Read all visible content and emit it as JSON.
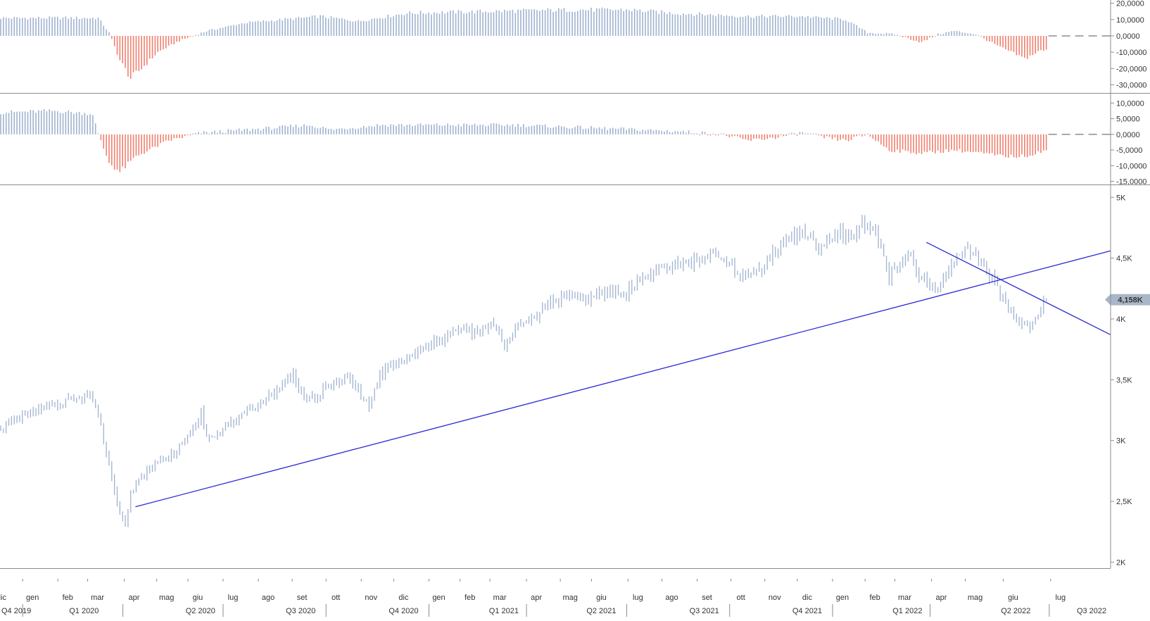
{
  "colors": {
    "bar_positive": "#9fb2cf",
    "bar_negative": "#f07f6e",
    "price": "#9fb2cf",
    "trendline": "#2b2bd6",
    "axis": "#8c8c8c",
    "badge_bg": "#a9b6c8"
  },
  "chart_data": [
    {
      "type": "bar",
      "panel": "indicator-1",
      "ylim": [
        -35,
        22
      ],
      "ticks": [
        "20,0000",
        "10,0000",
        "0,0000",
        "-10,0000",
        "-20,0000",
        "-30,0000"
      ],
      "tick_values": [
        20,
        10,
        0,
        -10,
        -20,
        -30
      ],
      "zero_line": "dashed",
      "series_anchors": [
        [
          0,
          11
        ],
        [
          36,
          11
        ],
        [
          40,
          2
        ],
        [
          44,
          -15
        ],
        [
          48,
          -26
        ],
        [
          52,
          -20
        ],
        [
          58,
          -10
        ],
        [
          66,
          -3
        ],
        [
          76,
          3
        ],
        [
          90,
          8
        ],
        [
          118,
          12
        ],
        [
          132,
          9
        ],
        [
          150,
          14
        ],
        [
          180,
          15
        ],
        [
          210,
          16
        ],
        [
          232,
          16
        ],
        [
          248,
          14
        ],
        [
          276,
          12
        ],
        [
          296,
          12
        ],
        [
          312,
          10
        ],
        [
          320,
          2
        ],
        [
          330,
          1
        ],
        [
          340,
          -4
        ],
        [
          346,
          1
        ],
        [
          352,
          3
        ],
        [
          360,
          1
        ],
        [
          368,
          -6
        ],
        [
          378,
          -14
        ],
        [
          384,
          -9
        ],
        [
          386,
          -9
        ]
      ]
    },
    {
      "type": "bar",
      "panel": "indicator-2",
      "ylim": [
        -16,
        13
      ],
      "ticks": [
        "10,0000",
        "5,0000",
        "0,0000",
        "-5,0000",
        "-10,0000",
        "-15,0000"
      ],
      "tick_values": [
        10,
        5,
        0,
        -5,
        -10,
        -15
      ],
      "zero_line": "dashed",
      "series_anchors": [
        [
          0,
          7
        ],
        [
          20,
          7.5
        ],
        [
          34,
          6.5
        ],
        [
          36,
          0
        ],
        [
          40,
          -9
        ],
        [
          44,
          -12
        ],
        [
          50,
          -7
        ],
        [
          62,
          -2
        ],
        [
          74,
          0.5
        ],
        [
          100,
          2
        ],
        [
          114,
          3
        ],
        [
          122,
          1.5
        ],
        [
          140,
          3
        ],
        [
          162,
          3
        ],
        [
          190,
          3
        ],
        [
          220,
          2
        ],
        [
          250,
          1
        ],
        [
          266,
          0
        ],
        [
          276,
          -2
        ],
        [
          286,
          -1
        ],
        [
          296,
          0.5
        ],
        [
          304,
          -1
        ],
        [
          312,
          -2
        ],
        [
          320,
          0
        ],
        [
          328,
          -5
        ],
        [
          340,
          -6
        ],
        [
          352,
          -5
        ],
        [
          362,
          -6
        ],
        [
          370,
          -7
        ],
        [
          378,
          -7
        ],
        [
          386,
          -5
        ]
      ]
    },
    {
      "type": "line",
      "panel": "price",
      "ylim": [
        1950,
        5100
      ],
      "ticks": [
        "5K",
        "4,5K",
        "4K",
        "3,5K",
        "3K",
        "2,5K",
        "2K"
      ],
      "tick_values": [
        5000,
        4500,
        4000,
        3500,
        3000,
        2500,
        2000
      ],
      "last_value_label": "4,158K",
      "last_value": 4158,
      "series_anchors": [
        [
          0,
          3110
        ],
        [
          12,
          3230
        ],
        [
          20,
          3290
        ],
        [
          24,
          3330
        ],
        [
          30,
          3360
        ],
        [
          33,
          3380
        ],
        [
          34,
          3330
        ],
        [
          36,
          3200
        ],
        [
          38,
          3000
        ],
        [
          40,
          2800
        ],
        [
          42,
          2580
        ],
        [
          44,
          2400
        ],
        [
          46,
          2340
        ],
        [
          48,
          2560
        ],
        [
          52,
          2700
        ],
        [
          56,
          2800
        ],
        [
          62,
          2860
        ],
        [
          66,
          2950
        ],
        [
          70,
          3050
        ],
        [
          74,
          3230
        ],
        [
          76,
          3050
        ],
        [
          80,
          3050
        ],
        [
          86,
          3150
        ],
        [
          92,
          3250
        ],
        [
          100,
          3380
        ],
        [
          104,
          3450
        ],
        [
          108,
          3550
        ],
        [
          112,
          3360
        ],
        [
          116,
          3320
        ],
        [
          120,
          3450
        ],
        [
          124,
          3470
        ],
        [
          128,
          3520
        ],
        [
          132,
          3420
        ],
        [
          136,
          3280
        ],
        [
          140,
          3550
        ],
        [
          146,
          3620
        ],
        [
          152,
          3700
        ],
        [
          158,
          3780
        ],
        [
          164,
          3850
        ],
        [
          170,
          3920
        ],
        [
          176,
          3880
        ],
        [
          182,
          3960
        ],
        [
          186,
          3800
        ],
        [
          190,
          3920
        ],
        [
          196,
          4000
        ],
        [
          202,
          4130
        ],
        [
          208,
          4180
        ],
        [
          212,
          4200
        ],
        [
          216,
          4150
        ],
        [
          220,
          4190
        ],
        [
          226,
          4230
        ],
        [
          230,
          4200
        ],
        [
          236,
          4330
        ],
        [
          242,
          4400
        ],
        [
          248,
          4440
        ],
        [
          254,
          4450
        ],
        [
          260,
          4510
        ],
        [
          264,
          4520
        ],
        [
          268,
          4450
        ],
        [
          272,
          4390
        ],
        [
          276,
          4350
        ],
        [
          280,
          4400
        ],
        [
          284,
          4520
        ],
        [
          288,
          4600
        ],
        [
          292,
          4680
        ],
        [
          296,
          4700
        ],
        [
          300,
          4660
        ],
        [
          302,
          4580
        ],
        [
          306,
          4630
        ],
        [
          310,
          4710
        ],
        [
          314,
          4660
        ],
        [
          318,
          4780
        ],
        [
          322,
          4760
        ],
        [
          324,
          4660
        ],
        [
          326,
          4500
        ],
        [
          328,
          4350
        ],
        [
          332,
          4450
        ],
        [
          336,
          4520
        ],
        [
          338,
          4380
        ],
        [
          342,
          4300
        ],
        [
          346,
          4220
        ],
        [
          348,
          4330
        ],
        [
          352,
          4480
        ],
        [
          356,
          4590
        ],
        [
          358,
          4560
        ],
        [
          362,
          4480
        ],
        [
          364,
          4400
        ],
        [
          368,
          4280
        ],
        [
          370,
          4160
        ],
        [
          372,
          4080
        ],
        [
          374,
          4020
        ],
        [
          376,
          3980
        ],
        [
          378,
          3930
        ],
        [
          380,
          3920
        ],
        [
          382,
          4010
        ],
        [
          386,
          4158
        ]
      ]
    }
  ],
  "trendlines": [
    {
      "name": "support",
      "from": [
        50,
        2455
      ],
      "to": [
        410,
        4560
      ]
    },
    {
      "name": "resistance",
      "from": [
        342,
        4630
      ],
      "to": [
        410,
        3870
      ]
    }
  ],
  "x_axis": {
    "months": [
      {
        "label": "dic",
        "t": 0.5
      },
      {
        "label": "gen",
        "t": 12
      },
      {
        "label": "feb",
        "t": 25
      },
      {
        "label": "mar",
        "t": 36
      },
      {
        "label": "apr",
        "t": 49.5
      },
      {
        "label": "mag",
        "t": 61.5
      },
      {
        "label": "giu",
        "t": 73
      },
      {
        "label": "lug",
        "t": 86
      },
      {
        "label": "ago",
        "t": 99
      },
      {
        "label": "set",
        "t": 111.5
      },
      {
        "label": "ott",
        "t": 124
      },
      {
        "label": "nov",
        "t": 137
      },
      {
        "label": "dic",
        "t": 149
      },
      {
        "label": "gen",
        "t": 162
      },
      {
        "label": "feb",
        "t": 173.5
      },
      {
        "label": "mar",
        "t": 184.5
      },
      {
        "label": "apr",
        "t": 198
      },
      {
        "label": "mag",
        "t": 210.5
      },
      {
        "label": "giu",
        "t": 222
      },
      {
        "label": "lug",
        "t": 235.5
      },
      {
        "label": "ago",
        "t": 248
      },
      {
        "label": "set",
        "t": 261
      },
      {
        "label": "ott",
        "t": 273.5
      },
      {
        "label": "nov",
        "t": 286
      },
      {
        "label": "dic",
        "t": 298
      },
      {
        "label": "gen",
        "t": 311
      },
      {
        "label": "feb",
        "t": 323
      },
      {
        "label": "mar",
        "t": 334
      },
      {
        "label": "apr",
        "t": 347.5
      },
      {
        "label": "mag",
        "t": 360
      },
      {
        "label": "giu",
        "t": 374
      },
      {
        "label": "lug",
        "t": 391.5
      }
    ],
    "quarters": [
      {
        "label": "Q4 2019",
        "t": 0,
        "div": 12
      },
      {
        "label": "Q1 2020",
        "t": 25,
        "div": 49
      },
      {
        "label": "Q2 2020",
        "t": 68,
        "div": 86
      },
      {
        "label": "Q3 2020",
        "t": 105,
        "div": 124
      },
      {
        "label": "Q4 2020",
        "t": 143,
        "div": 162
      },
      {
        "label": "Q1 2021",
        "t": 180,
        "div": 198
      },
      {
        "label": "Q2 2021",
        "t": 216,
        "div": 235
      },
      {
        "label": "Q3 2021",
        "t": 254,
        "div": 273
      },
      {
        "label": "Q4 2021",
        "t": 292,
        "div": 311
      },
      {
        "label": "Q1 2022",
        "t": 329,
        "div": 347
      },
      {
        "label": "Q2 2022",
        "t": 369,
        "div": 391
      },
      {
        "label": "Q3 2022",
        "t": 397,
        "div": null
      }
    ]
  }
}
